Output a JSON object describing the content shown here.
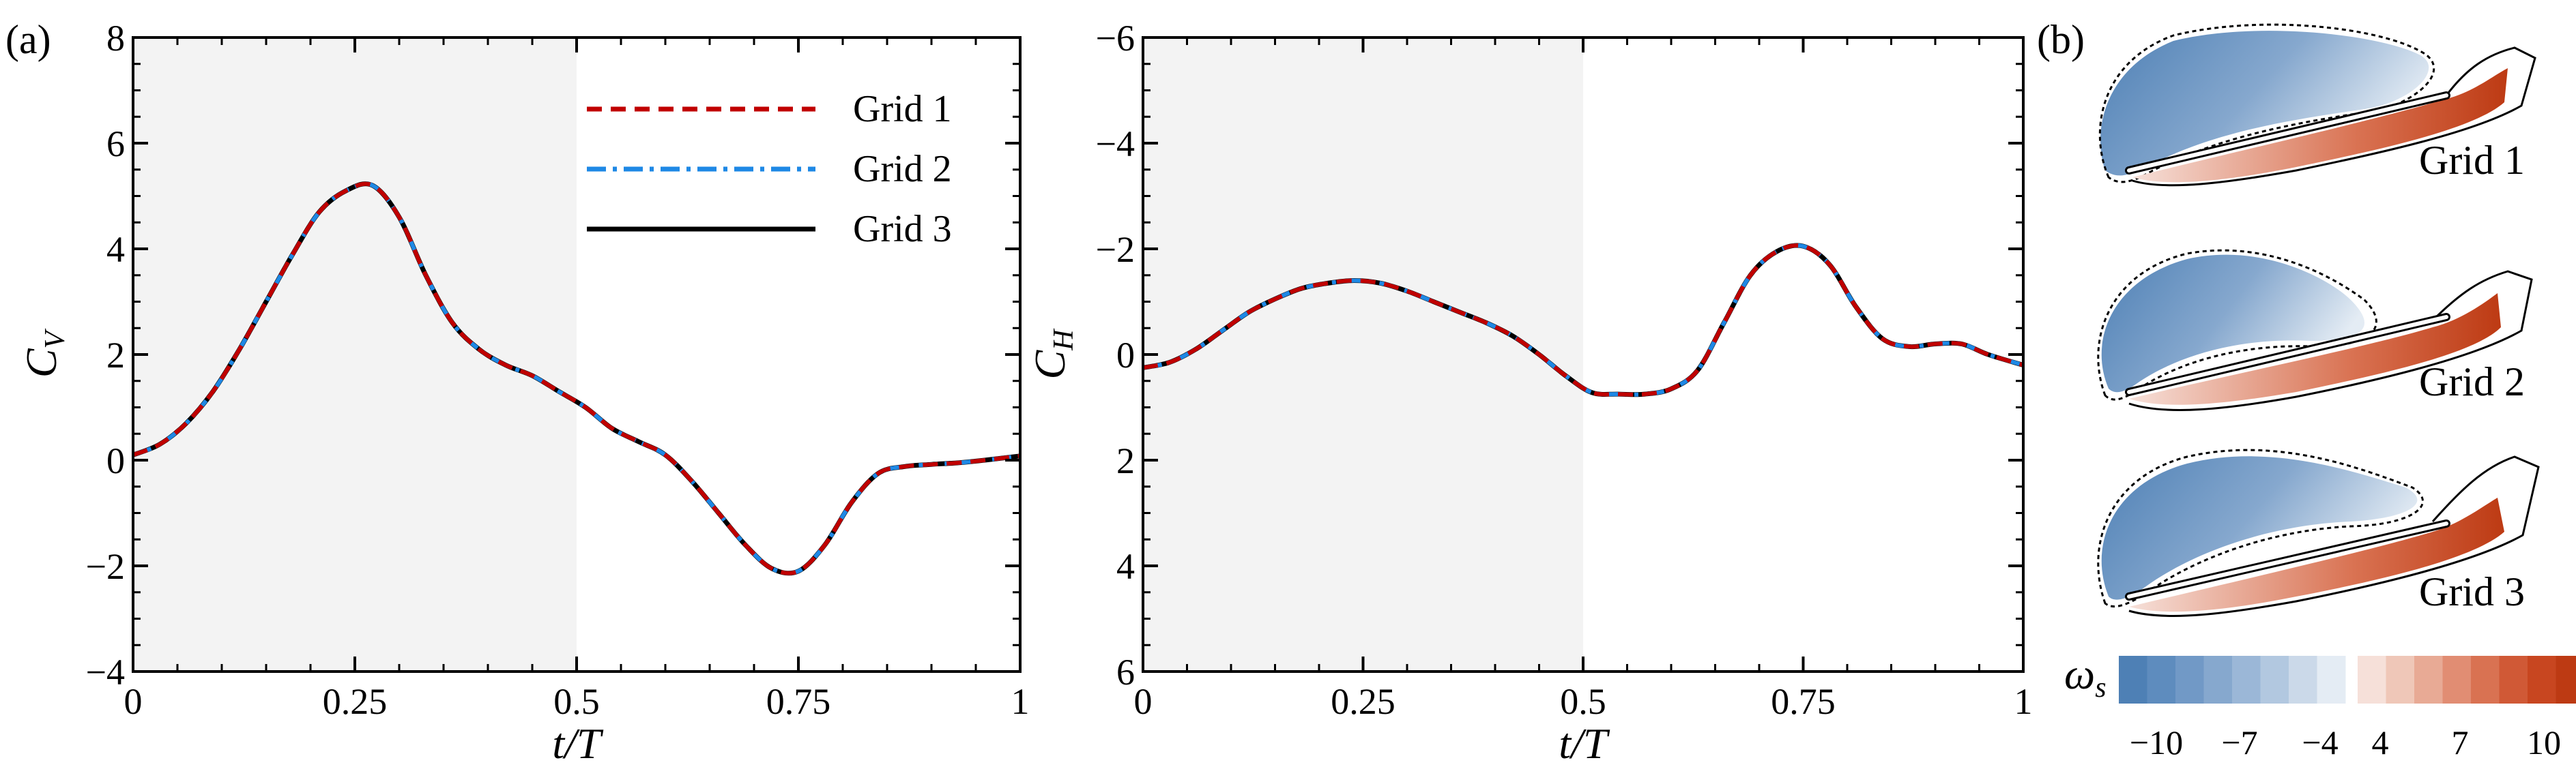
{
  "panels": {
    "a_label": "(a)",
    "b_label": "(b)"
  },
  "chart_data": [
    {
      "type": "line",
      "xlabel": "t/T",
      "ylabel": "C_V",
      "xlim": [
        0,
        1
      ],
      "ylim": [
        -4,
        8
      ],
      "xticks": [
        0,
        0.25,
        0.5,
        0.75,
        1
      ],
      "xtick_labels": [
        "0",
        "0.25",
        "0.5",
        "0.75",
        "1"
      ],
      "yticks": [
        -4,
        -2,
        0,
        2,
        4,
        6,
        8
      ],
      "ytick_labels": [
        "−4",
        "−2",
        "0",
        "2",
        "4",
        "6",
        "8"
      ],
      "y_inverted": false,
      "shaded_region": [
        0,
        0.5
      ],
      "legend": {
        "placement": "top-right",
        "entries": [
          "Grid 1",
          "Grid 2",
          "Grid 3"
        ]
      },
      "series": [
        {
          "name": "Grid 1",
          "color": "#c00000",
          "style": "dashed"
        },
        {
          "name": "Grid 2",
          "color": "#1e88e5",
          "style": "dash-dot"
        },
        {
          "name": "Grid 3",
          "color": "#000000",
          "style": "solid"
        }
      ],
      "x": [
        0,
        0.03,
        0.06,
        0.09,
        0.12,
        0.15,
        0.18,
        0.21,
        0.24,
        0.27,
        0.3,
        0.33,
        0.36,
        0.39,
        0.42,
        0.45,
        0.48,
        0.51,
        0.54,
        0.57,
        0.6,
        0.63,
        0.66,
        0.69,
        0.72,
        0.75,
        0.78,
        0.81,
        0.84,
        0.87,
        0.9,
        0.93,
        0.96,
        1.0
      ],
      "y": [
        0.1,
        0.3,
        0.7,
        1.3,
        2.1,
        3.0,
        3.9,
        4.7,
        5.1,
        5.2,
        4.6,
        3.5,
        2.6,
        2.1,
        1.8,
        1.6,
        1.3,
        1.0,
        0.6,
        0.35,
        0.1,
        -0.4,
        -1.0,
        -1.6,
        -2.05,
        -2.1,
        -1.6,
        -0.8,
        -0.25,
        -0.12,
        -0.08,
        -0.05,
        0.0,
        0.08
      ]
    },
    {
      "type": "line",
      "xlabel": "t/T",
      "ylabel": "C_H",
      "xlim": [
        0,
        1
      ],
      "ylim": [
        6,
        -6
      ],
      "xticks": [
        0,
        0.25,
        0.5,
        0.75,
        1
      ],
      "xtick_labels": [
        "0",
        "0.25",
        "0.5",
        "0.75",
        "1"
      ],
      "yticks": [
        6,
        4,
        2,
        0,
        -2,
        -4,
        -6
      ],
      "ytick_labels": [
        "6",
        "4",
        "2",
        "0",
        "−2",
        "−4",
        "−6"
      ],
      "y_inverted": true,
      "shaded_region": [
        0,
        0.5
      ],
      "series": [
        {
          "name": "Grid 1",
          "color": "#c00000",
          "style": "dashed"
        },
        {
          "name": "Grid 2",
          "color": "#1e88e5",
          "style": "dash-dot"
        },
        {
          "name": "Grid 3",
          "color": "#000000",
          "style": "solid"
        }
      ],
      "x": [
        0,
        0.03,
        0.06,
        0.09,
        0.12,
        0.15,
        0.18,
        0.21,
        0.24,
        0.27,
        0.3,
        0.33,
        0.36,
        0.39,
        0.42,
        0.45,
        0.48,
        0.51,
        0.54,
        0.57,
        0.6,
        0.63,
        0.66,
        0.69,
        0.72,
        0.75,
        0.78,
        0.81,
        0.84,
        0.87,
        0.9,
        0.93,
        0.96,
        1.0
      ],
      "y": [
        0.25,
        0.15,
        -0.1,
        -0.45,
        -0.8,
        -1.05,
        -1.25,
        -1.35,
        -1.4,
        -1.35,
        -1.2,
        -1.0,
        -0.8,
        -0.6,
        -0.35,
        0.0,
        0.4,
        0.72,
        0.75,
        0.75,
        0.65,
        0.3,
        -0.6,
        -1.5,
        -1.95,
        -2.05,
        -1.7,
        -0.9,
        -0.3,
        -0.15,
        -0.2,
        -0.2,
        0.0,
        0.2
      ]
    }
  ],
  "vorticity_panel": {
    "snapshots": [
      {
        "label": "Grid 1"
      },
      {
        "label": "Grid 2"
      },
      {
        "label": "Grid 3"
      }
    ],
    "colorbar": {
      "symbol": "ω",
      "subscript": "s",
      "tick_labels": [
        "−10",
        "−7",
        "−4",
        "4",
        "7",
        "10"
      ],
      "negative_colors": [
        "#4e80b5",
        "#5e8cbe",
        "#7199c6",
        "#86a8ce",
        "#9bb7d7",
        "#b2c8e0",
        "#cbd9e9",
        "#e4ecf4"
      ],
      "positive_colors": [
        "#f6e0d9",
        "#efc7b8",
        "#e8aa95",
        "#e18d73",
        "#d97252",
        "#d05936",
        "#c84620",
        "#bd3a13"
      ]
    }
  }
}
